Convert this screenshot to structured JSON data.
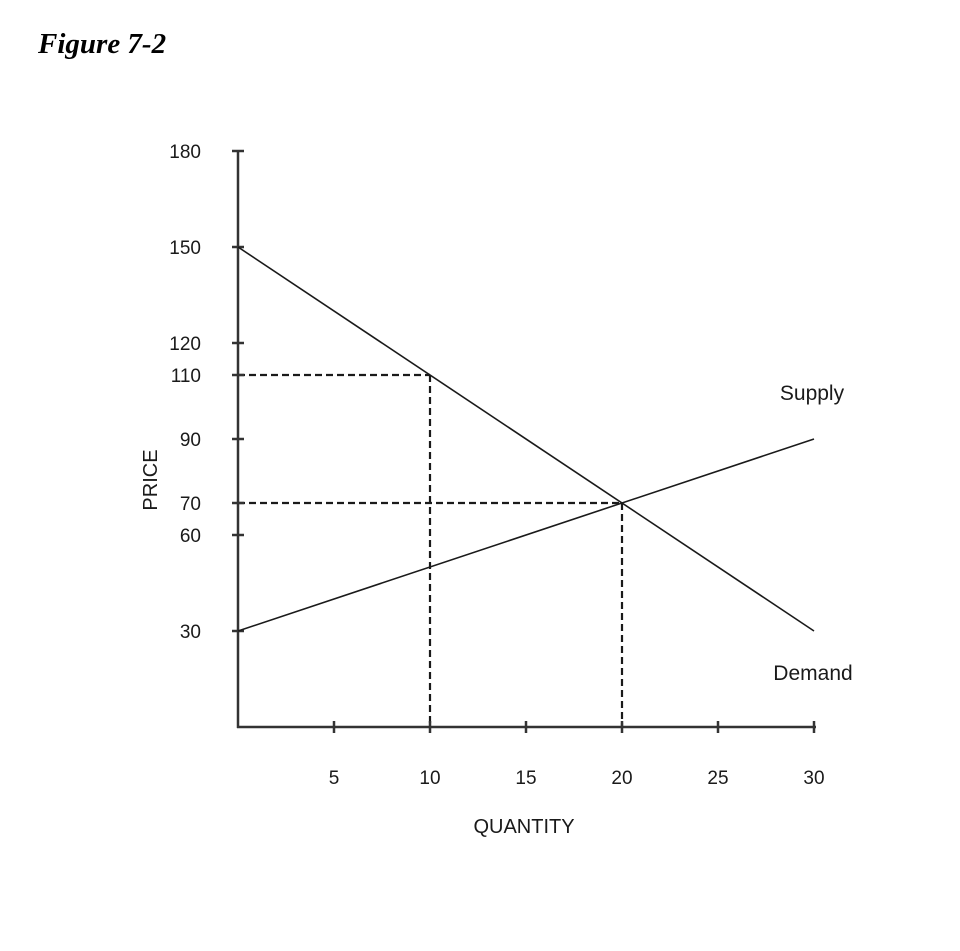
{
  "figure": {
    "title": "Figure 7-2"
  },
  "chart_data": {
    "type": "line",
    "xlabel": "QUANTITY",
    "ylabel": "PRICE",
    "xlim": [
      0,
      30
    ],
    "ylim": [
      0,
      180
    ],
    "x_ticks": [
      5,
      10,
      15,
      20,
      25,
      30
    ],
    "y_ticks": [
      30,
      60,
      70,
      90,
      110,
      120,
      150,
      180
    ],
    "grid": false,
    "series": [
      {
        "name": "Supply",
        "x": [
          0,
          30
        ],
        "y": [
          30,
          90
        ]
      },
      {
        "name": "Demand",
        "x": [
          0,
          30
        ],
        "y": [
          150,
          30
        ]
      }
    ],
    "reference_lines": [
      {
        "x": 10,
        "y": 110,
        "style": "dashed"
      },
      {
        "x": 20,
        "y": 70,
        "style": "dashed"
      }
    ],
    "colors": {
      "line": "#1a1a1a",
      "axis": "#333333"
    }
  }
}
